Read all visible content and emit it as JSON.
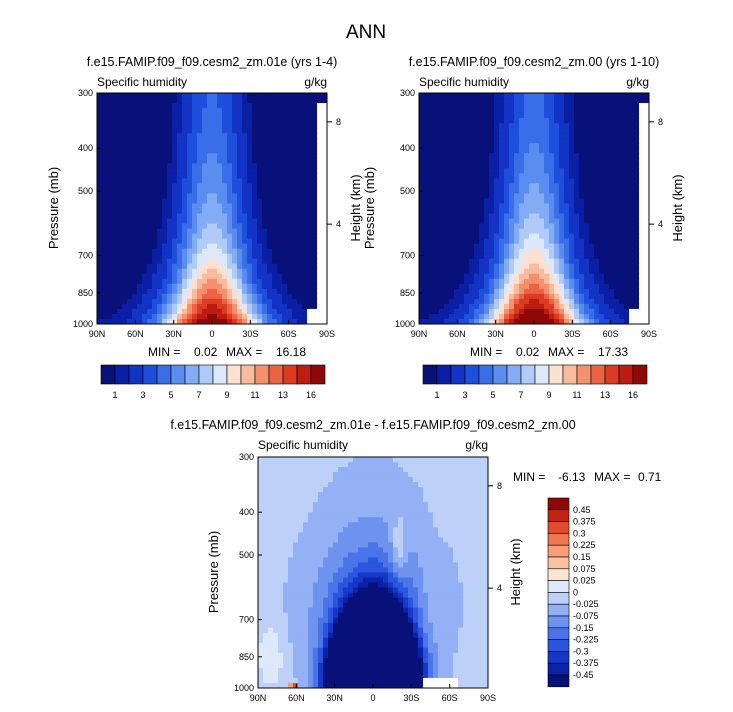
{
  "figure": {
    "title": "ANN"
  },
  "palettes": {
    "absolute": [
      "#08107a",
      "#0a1fa3",
      "#1233c4",
      "#1e4fdc",
      "#3a6ee8",
      "#5a8df0",
      "#84acf4",
      "#b0cbf8",
      "#dde9fb",
      "#fde0cf",
      "#f9bb9d",
      "#f5906e",
      "#ec6344",
      "#db3a23",
      "#bd1d10",
      "#8d0808"
    ],
    "difference": [
      "#08107a",
      "#0a22a8",
      "#1538c8",
      "#2a55dc",
      "#4a74e8",
      "#6d93ef",
      "#93b1f4",
      "#bcd0f8",
      "#dde9fb",
      "#fde5d4",
      "#f9c2a3",
      "#f59e78",
      "#ee7650",
      "#e04c2c",
      "#c22414",
      "#8d0808"
    ]
  },
  "charts": [
    {
      "id": "left",
      "title": "f.e15.FAMIP.f09_f09.cesm2_zm.01e (yrs 1-4)",
      "field_label": "Specific humidity",
      "units_label": "g/kg",
      "ylabel": "Pressure (mb)",
      "ylabel_right": "Height (km)",
      "min_label": "MIN =",
      "min_value": "0.02",
      "max_label": "MAX =",
      "max_value": "16.18",
      "stats_position": "below"
    },
    {
      "id": "right",
      "title": "f.e15.FAMIP.f09_f09.cesm2_zm.00 (yrs 1-10)",
      "field_label": "Specific humidity",
      "units_label": "g/kg",
      "ylabel": "Pressure (mb)",
      "ylabel_right": "Height (km)",
      "min_label": "MIN =",
      "min_value": "0.02",
      "max_label": "MAX =",
      "max_value": "17.33",
      "stats_position": "below"
    },
    {
      "id": "diff",
      "title": "f.e15.FAMIP.f09_f09.cesm2_zm.01e - f.e15.FAMIP.f09_f09.cesm2_zm.00",
      "field_label": "Specific humidity",
      "units_label": "g/kg",
      "ylabel": "Pressure (mb)",
      "ylabel_right": "Height (km)",
      "min_label": "MIN =",
      "min_value": "-6.13",
      "max_label": "MAX =",
      "max_value": "0.71",
      "stats_position": "right"
    }
  ],
  "chart_data": [
    {
      "type": "heatmap",
      "title": "f.e15.FAMIP.f09_f09.cesm2_zm.01e (yrs 1-4)",
      "field": "Specific humidity",
      "units": "g/kg",
      "ylabel": "Pressure (mb)",
      "ylabel_right": "Height (km)",
      "x_ticks": [
        "90N",
        "60N",
        "30N",
        "0",
        "30S",
        "60S",
        "90S"
      ],
      "x_range": [
        90,
        -90
      ],
      "y_ticks": [
        300,
        400,
        500,
        700,
        850,
        1000
      ],
      "y_range": [
        1000,
        300
      ],
      "y_scale": "log",
      "y_right_ticks": [
        4,
        8
      ],
      "min": 0.02,
      "max": 16.18,
      "colorbar_labels": [
        "1",
        "3",
        "5",
        "7",
        "9",
        "11",
        "13",
        "16"
      ],
      "colorbar_orientation": "horizontal",
      "surface_humidity_by_latitude": [
        {
          "lat": 90,
          "q": 0.5
        },
        {
          "lat": 60,
          "q": 4
        },
        {
          "lat": 30,
          "q": 11
        },
        {
          "lat": 0,
          "q": 16.18
        },
        {
          "lat": -30,
          "q": 11
        },
        {
          "lat": -60,
          "q": 4
        },
        {
          "lat": -90,
          "q": 0.1
        }
      ]
    },
    {
      "type": "heatmap",
      "title": "f.e15.FAMIP.f09_f09.cesm2_zm.00 (yrs 1-10)",
      "field": "Specific humidity",
      "units": "g/kg",
      "ylabel": "Pressure (mb)",
      "ylabel_right": "Height (km)",
      "x_ticks": [
        "90N",
        "60N",
        "30N",
        "0",
        "30S",
        "60S",
        "90S"
      ],
      "x_range": [
        90,
        -90
      ],
      "y_ticks": [
        300,
        400,
        500,
        700,
        850,
        1000
      ],
      "y_range": [
        1000,
        300
      ],
      "y_scale": "log",
      "y_right_ticks": [
        4,
        8
      ],
      "min": 0.02,
      "max": 17.33,
      "colorbar_labels": [
        "1",
        "3",
        "5",
        "7",
        "9",
        "11",
        "13",
        "16"
      ],
      "colorbar_orientation": "horizontal",
      "surface_humidity_by_latitude": [
        {
          "lat": 90,
          "q": 0.5
        },
        {
          "lat": 60,
          "q": 4.5
        },
        {
          "lat": 30,
          "q": 12
        },
        {
          "lat": 0,
          "q": 17.33
        },
        {
          "lat": -30,
          "q": 12
        },
        {
          "lat": -60,
          "q": 4.5
        },
        {
          "lat": -90,
          "q": 0.1
        }
      ]
    },
    {
      "type": "heatmap",
      "title": "f.e15.FAMIP.f09_f09.cesm2_zm.01e - f.e15.FAMIP.f09_f09.cesm2_zm.00",
      "field": "Specific humidity",
      "units": "g/kg",
      "ylabel": "Pressure (mb)",
      "ylabel_right": "Height (km)",
      "x_ticks": [
        "90N",
        "60N",
        "30N",
        "0",
        "30S",
        "60S",
        "90S"
      ],
      "x_range": [
        90,
        -90
      ],
      "y_ticks": [
        300,
        400,
        500,
        700,
        850,
        1000
      ],
      "y_range": [
        1000,
        300
      ],
      "y_scale": "log",
      "y_right_ticks": [
        4,
        8
      ],
      "min": -6.13,
      "max": 0.71,
      "colorbar_labels": [
        "0.45",
        "0.375",
        "0.3",
        "0.225",
        "0.15",
        "0.075",
        "0.025",
        "0",
        "-0.025",
        "-0.075",
        "-0.15",
        "-0.225",
        "-0.3",
        "-0.375",
        "-0.45"
      ],
      "colorbar_orientation": "vertical"
    }
  ]
}
